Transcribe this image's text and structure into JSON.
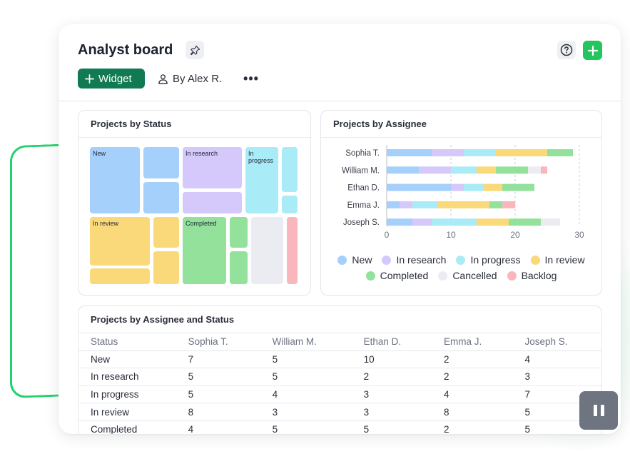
{
  "board": {
    "title": "Analyst board",
    "widget_button": "Widget",
    "owner": "By Alex R.",
    "more_label": "•••"
  },
  "panels": {
    "status_title": "Projects by Status",
    "assignee_title": "Projects by Assignee",
    "table_title": "Projects by Assignee and Status"
  },
  "treemap_labels": {
    "new": "New",
    "in_research": "In research",
    "in_progress": "In progress",
    "in_review": "In review",
    "completed": "Completed"
  },
  "colors": {
    "New": "#a5d0fb",
    "In research": "#d5c8fa",
    "In progress": "#a9ecf7",
    "In review": "#fad97a",
    "Completed": "#93e19b",
    "Cancelled": "#ebecf2",
    "Backlog": "#f9b7bd",
    "accent_green": "#22c55e",
    "widget_green": "#117a52"
  },
  "chart_data": {
    "type": "bar",
    "orientation": "horizontal",
    "stacked": true,
    "categories": [
      "Sophia T.",
      "William M.",
      "Ethan D.",
      "Emma J.",
      "Joseph S."
    ],
    "xlim": [
      0,
      30
    ],
    "xticks": [
      "0",
      "10",
      "20",
      "30"
    ],
    "grid": "dashed vertical",
    "legend_position": "bottom",
    "series": [
      {
        "name": "New",
        "values": [
          7,
          5,
          10,
          2,
          4
        ]
      },
      {
        "name": "In research",
        "values": [
          5,
          5,
          2,
          2,
          3
        ]
      },
      {
        "name": "In progress",
        "values": [
          5,
          4,
          3,
          4,
          7
        ]
      },
      {
        "name": "In review",
        "values": [
          8,
          3,
          3,
          8,
          5
        ]
      },
      {
        "name": "Completed",
        "values": [
          4,
          5,
          5,
          2,
          5
        ]
      },
      {
        "name": "Cancelled",
        "values": [
          0,
          2,
          0,
          0,
          3
        ]
      },
      {
        "name": "Backlog",
        "values": [
          0,
          1,
          0,
          2,
          0
        ]
      }
    ]
  },
  "table": {
    "columns": [
      "Status",
      "Sophia T.",
      "William M.",
      "Ethan D.",
      "Emma J.",
      "Joseph S."
    ],
    "rows": [
      [
        "New",
        "7",
        "5",
        "10",
        "2",
        "4"
      ],
      [
        "In research",
        "5",
        "5",
        "2",
        "2",
        "3"
      ],
      [
        "In progress",
        "5",
        "4",
        "3",
        "4",
        "7"
      ],
      [
        "In review",
        "8",
        "3",
        "3",
        "8",
        "5"
      ],
      [
        "Completed",
        "4",
        "5",
        "5",
        "2",
        "5"
      ]
    ]
  }
}
